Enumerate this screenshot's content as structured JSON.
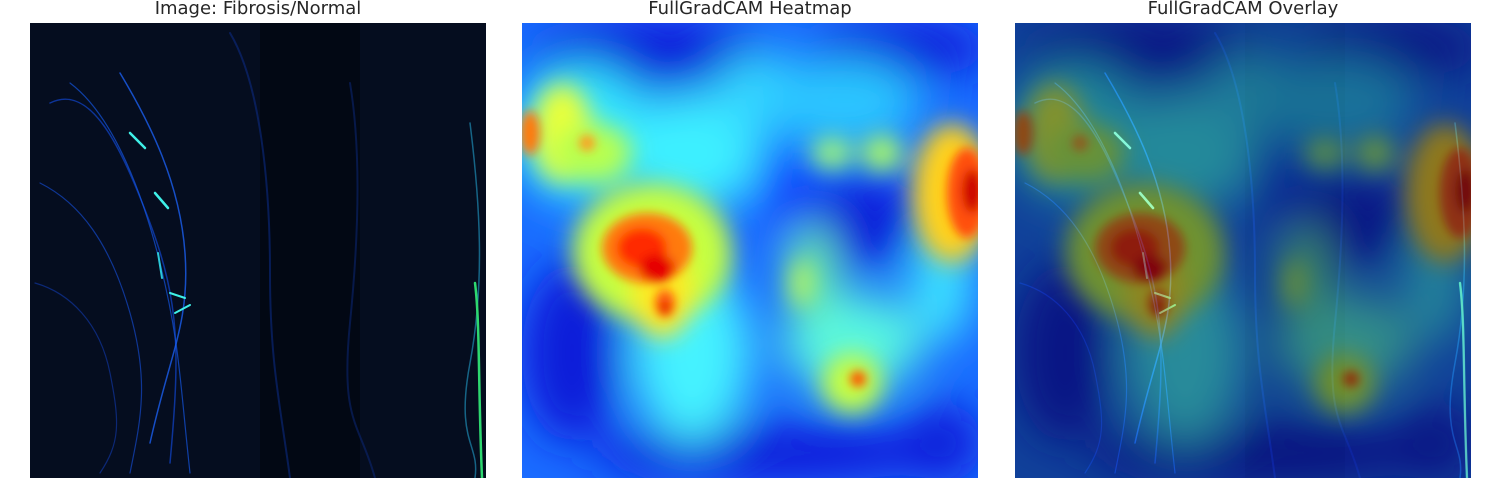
{
  "panels": [
    {
      "title": "Image: Fibrosis/Normal",
      "content": "grayscale lung image with green/cyan edges"
    },
    {
      "title": "FullGradCAM Heatmap",
      "content": "jet colormap heatmap"
    },
    {
      "title": "FullGradCAM Overlay",
      "content": "heatmap overlaid on image"
    }
  ],
  "colors": {
    "background": "#ffffff",
    "title_text": "#262626",
    "image_base": "#050d1f"
  }
}
